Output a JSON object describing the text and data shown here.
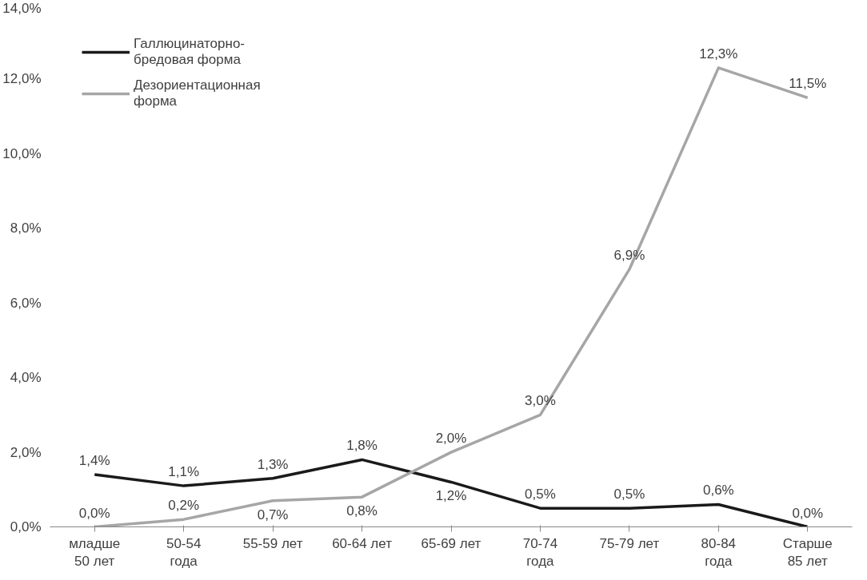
{
  "chart_data": {
    "type": "line",
    "categories": [
      "младше\n50 лет",
      "50-54\nгода",
      "55-59 лет",
      "60-64 лет",
      "65-69 лет",
      "70-74\nгода",
      "75-79 лет",
      "80-84\nгода",
      "Старше\n85 лет"
    ],
    "series": [
      {
        "name": "Галлюцинаторно-\nбредовая форма",
        "color": "#1a1a1a",
        "values": [
          1.4,
          1.1,
          1.3,
          1.8,
          1.2,
          0.5,
          0.5,
          0.6,
          0.0
        ],
        "value_labels": [
          "1,4%",
          "1,1%",
          "1,3%",
          "1,8%",
          "1,2%",
          "0,5%",
          "0,5%",
          "0,6%",
          "0,0%"
        ]
      },
      {
        "name": "Дезориентационная\nформа",
        "color": "#a6a6a6",
        "values": [
          0.0,
          0.2,
          0.7,
          0.8,
          2.0,
          3.0,
          6.9,
          12.3,
          11.5
        ],
        "value_labels": [
          "0,0%",
          "0,2%",
          "0,7%",
          "0,8%",
          "2,0%",
          "3,0%",
          "6,9%",
          "12,3%",
          "11,5%"
        ]
      }
    ],
    "ylim": [
      0,
      14
    ],
    "yticks": [
      {
        "value": 0,
        "label": "0,0%"
      },
      {
        "value": 2,
        "label": "2,0%"
      },
      {
        "value": 4,
        "label": "4,0%"
      },
      {
        "value": 6,
        "label": "6,0%"
      },
      {
        "value": 8,
        "label": "8,0%"
      },
      {
        "value": 10,
        "label": "10,0%"
      },
      {
        "value": 12,
        "label": "12,0%"
      },
      {
        "value": 14,
        "label": "14,0%"
      }
    ],
    "grid": false,
    "legend": "top left",
    "marker": "none",
    "line_style": "solid"
  }
}
